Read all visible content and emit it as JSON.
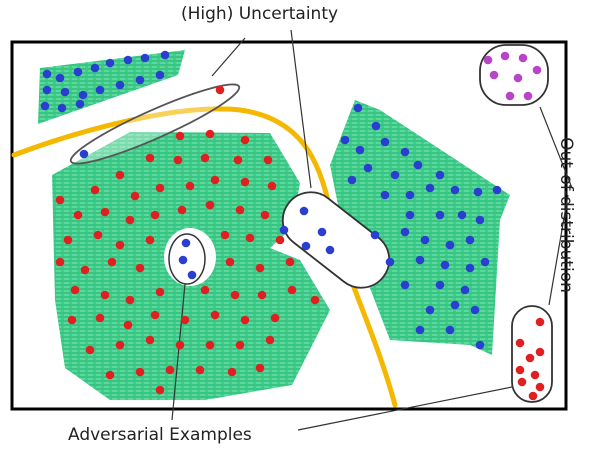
{
  "labels": {
    "uncertainty": "(High) Uncertainty",
    "out_of_distribution": "Out-of-distribution",
    "adversarial": "Adversarial Examples"
  },
  "colors": {
    "region_fill": "#2ec27e",
    "red_dot": "#e02020",
    "blue_dot": "#2a3fd0",
    "purple_dot": "#b844c8",
    "boundary": "#f5b800",
    "frame": "#000000",
    "oval_stroke": "#333333"
  }
}
